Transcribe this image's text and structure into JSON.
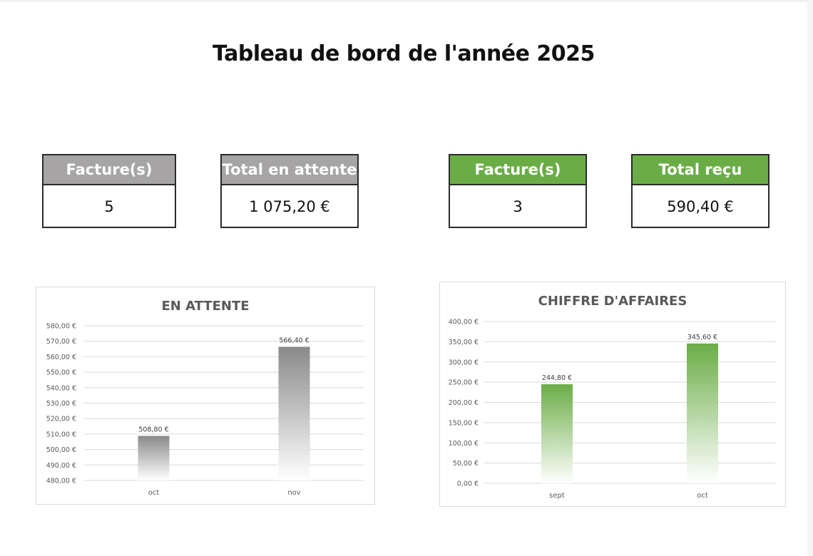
{
  "page": {
    "title": "Tableau de bord de l'année 2025"
  },
  "kpis": {
    "pending_count": {
      "label": "Facture(s)",
      "value": "5"
    },
    "pending_total": {
      "label": "Total en attente",
      "value": "1 075,20 €"
    },
    "received_count": {
      "label": "Facture(s)",
      "value": "3"
    },
    "received_total": {
      "label": "Total reçu",
      "value": "590,40 €"
    }
  },
  "colors": {
    "gray": "#a6a4a5",
    "green": "#6aad46",
    "bar_gray": "#8c8c8c",
    "bar_green": "#6aad46"
  },
  "chart_data": [
    {
      "id": "attente",
      "type": "bar",
      "title": "EN ATTENTE",
      "categories": [
        "oct",
        "nov"
      ],
      "values": [
        508.8,
        566.4
      ],
      "value_labels": [
        "508,80 €",
        "566,40 €"
      ],
      "ylim": [
        480,
        580
      ],
      "yticks": [
        480,
        490,
        500,
        510,
        520,
        530,
        540,
        550,
        560,
        570,
        580
      ],
      "ytick_labels": [
        "480,00 €",
        "490,00 €",
        "500,00 €",
        "510,00 €",
        "520,00 €",
        "530,00 €",
        "540,00 €",
        "550,00 €",
        "560,00 €",
        "570,00 €",
        "580,00 €"
      ],
      "grid": true,
      "color": "gray"
    },
    {
      "id": "ca",
      "type": "bar",
      "title": "CHIFFRE D'AFFAIRES",
      "categories": [
        "sept",
        "oct"
      ],
      "values": [
        244.8,
        345.6
      ],
      "value_labels": [
        "244,80 €",
        "345,60 €"
      ],
      "ylim": [
        0,
        400
      ],
      "yticks": [
        0,
        50,
        100,
        150,
        200,
        250,
        300,
        350,
        400
      ],
      "ytick_labels": [
        "0,00 €",
        "50,00 €",
        "100,00 €",
        "150,00 €",
        "200,00 €",
        "250,00 €",
        "300,00 €",
        "350,00 €",
        "400,00 €"
      ],
      "grid": true,
      "color": "green"
    }
  ]
}
